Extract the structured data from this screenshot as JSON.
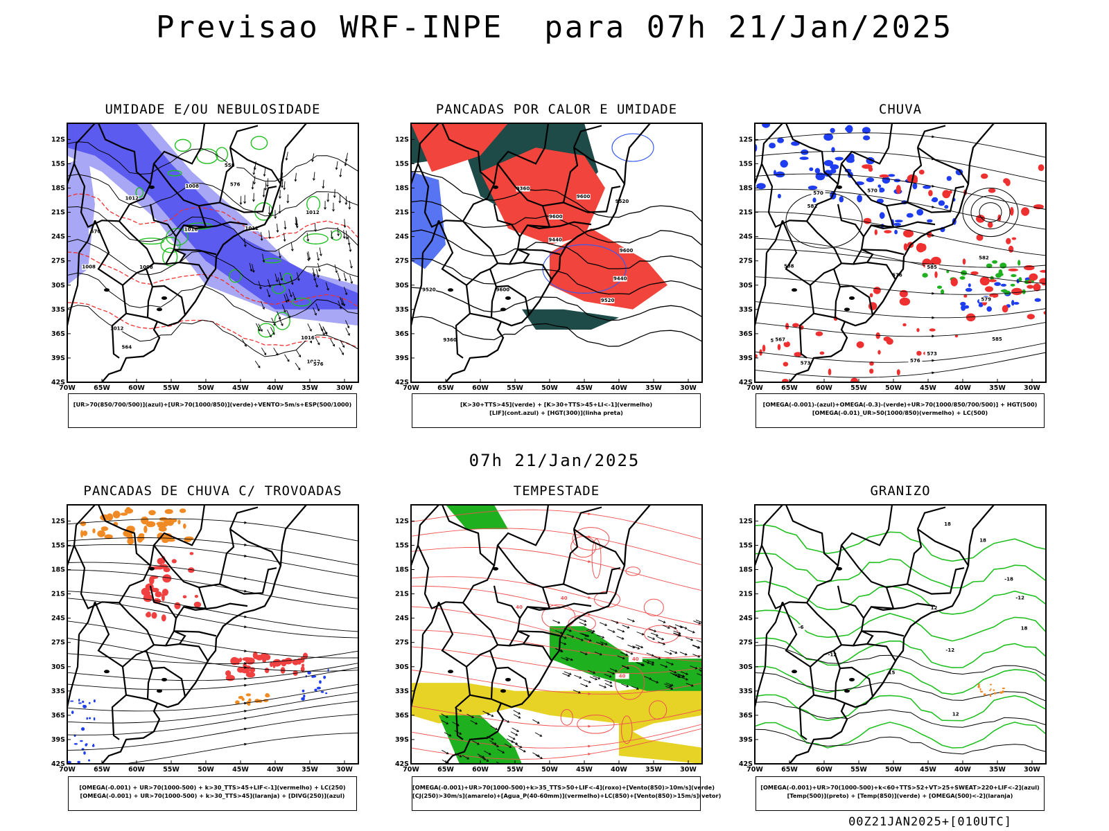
{
  "title": "Previsao WRF-INPE  para 07h 21/Jan/2025",
  "mid_date": "07h 21/Jan/2025",
  "footer": "00Z21JAN2025+[010UTC]",
  "axes": {
    "lat_labels": [
      "12S",
      "15S",
      "18S",
      "21S",
      "24S",
      "27S",
      "30S",
      "33S",
      "36S",
      "39S",
      "42S"
    ],
    "lon_labels": [
      "70W",
      "65W",
      "60W",
      "55W",
      "50W",
      "45W",
      "40W",
      "35W",
      "30W"
    ]
  },
  "panels": [
    {
      "id": "umidade",
      "title": "UMIDADE E/OU NEBULOSIDADE",
      "legend": [
        "[UR>70(850/700/500)](azul)+[UR>70(1000/850)](verde)+VENTO>5m/s+ESP(500/1000)"
      ],
      "fields": [
        "humidity-blue",
        "humidity-green",
        "thickness-red",
        "isobars-black",
        "wind-vectors"
      ],
      "contour_labels": [
        "1012",
        "1016",
        "1012",
        "1016",
        "1012",
        "1008",
        "1008",
        "1012",
        "1012",
        "1008",
        "576",
        "570",
        "564",
        "558",
        "576"
      ],
      "colors": {
        "blue": "#5b5bf0",
        "lightblue": "#a7a7f5",
        "green": "#21c021",
        "red": "#ef3030"
      }
    },
    {
      "id": "pancadas-calor",
      "title": "PANCADAS POR CALOR E UMIDADE",
      "legend": [
        "[K>30+TTS>45](verde) + [K>30+TTS>45+LI<-1](vermelho)",
        "[LIF](cont.azul) + [HGT(300)](linha preta)"
      ],
      "fields": [
        "instability-red",
        "instability-darkgreen",
        "lif-blue",
        "hgt300-black"
      ],
      "contour_labels": [
        "9600",
        "9600",
        "9520",
        "9520",
        "9600",
        "9520",
        "9600",
        "9440",
        "9440",
        "9360",
        "9360"
      ],
      "colors": {
        "red": "#f0443c",
        "darkgreen": "#1e4a48",
        "blue": "#3a5cf0"
      }
    },
    {
      "id": "chuva",
      "title": "CHUVA",
      "legend": [
        "[OMEGA(-0.001)-(azul)+OMEGA(-0.3)-(verde)+UR>70(1000/850/700/500)] + HGT(500)",
        "[OMEGA(-0.01)_UR>50(1000/850)(vermelho) + LC(500)"
      ],
      "fields": [
        "omega-blue",
        "omega-green",
        "omega-red",
        "hgt500-black",
        "streamlines"
      ],
      "contour_labels": [
        "585",
        "588",
        "582",
        "582",
        "579",
        "576",
        "573",
        "570",
        "567",
        "576",
        "573",
        "570",
        "567",
        "585"
      ],
      "colors": {
        "blue": "#1e3cf0",
        "green": "#21b021",
        "red": "#ef3030"
      }
    },
    {
      "id": "pancadas-trovoadas",
      "title": "PANCADAS DE CHUVA C/ TROVOADAS",
      "legend": [
        "[OMEGA(-0.001) + UR>70(1000-500) + k>30_TTS>45+LIF<-1](vermelho) + LC(250)",
        "[OMEGA(-0.001) + UR>70(1000-500) + k>30_TTS>45](laranja) + [DIVG(250)](azul)"
      ],
      "fields": [
        "storms-red",
        "storms-orange",
        "divg-blue",
        "streamlines-250"
      ],
      "contour_labels": [],
      "colors": {
        "red": "#f04040",
        "orange": "#f08a25",
        "blue": "#2040f0"
      }
    },
    {
      "id": "tempestade",
      "title": "TEMPESTADE",
      "legend": [
        "[OMEGA(-0.001)+UR>70(1000-500)+k>35_TTS>50+LIF<-4](roxo)+[Vento(850)>10m/s](verde)",
        "[CJ(250)>30m/s](amarelo)+[Agua_P(40-60mm)](vermelho)+LC(850)+[Vento(850)>15m/s](vetor)"
      ],
      "fields": [
        "jet-yellow",
        "wind850-green",
        "pw-red",
        "streamlines-850",
        "wind-vectors"
      ],
      "contour_labels": [
        "40",
        "40",
        "40",
        "40"
      ],
      "colors": {
        "yellow": "#e6d326",
        "green": "#1fb01f",
        "red": "#f05050"
      }
    },
    {
      "id": "granizo",
      "title": "GRANIZO",
      "legend": [
        "[OMEGA(-0.001)+UR>70(1000-500)+k<60+TTS>52+VT>25+SWEAT>220+LIF<-2](azul)",
        "[Temp(500)](preto) + [Temp(850)](verde) + [OMEGA(500)<-2](laranja)"
      ],
      "fields": [
        "temp500-black",
        "temp850-green",
        "hail-orange"
      ],
      "contour_labels": [
        "-6",
        "-12",
        "-12",
        "-18",
        "18",
        "18",
        "15",
        "18",
        "12",
        "12",
        "-12"
      ],
      "colors": {
        "green": "#21c021",
        "orange": "#f08a25"
      }
    }
  ]
}
